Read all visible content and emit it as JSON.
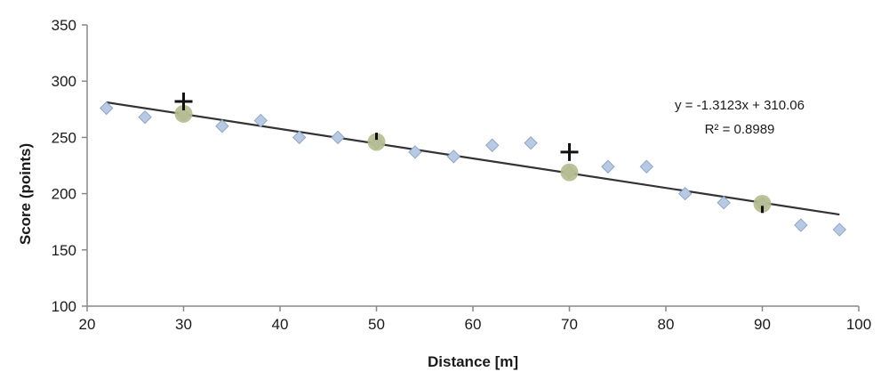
{
  "chart_data": {
    "type": "scatter",
    "xlabel": "Distance [m]",
    "ylabel": "Score (points)",
    "xlim": [
      20,
      100
    ],
    "ylim": [
      100,
      350
    ],
    "x_ticks": [
      20,
      30,
      40,
      50,
      60,
      70,
      80,
      90,
      100
    ],
    "y_ticks": [
      100,
      150,
      200,
      250,
      300,
      350
    ],
    "grid": false,
    "series": [
      {
        "marker": "diamond",
        "color": "#b8c9e3",
        "points": [
          [
            22,
            276
          ],
          [
            26,
            268
          ],
          [
            30,
            270
          ],
          [
            34,
            260
          ],
          [
            38,
            265
          ],
          [
            42,
            250
          ],
          [
            46,
            250
          ],
          [
            50,
            245
          ],
          [
            54,
            237
          ],
          [
            58,
            233
          ],
          [
            62,
            243
          ],
          [
            66,
            245
          ],
          [
            70,
            219
          ],
          [
            74,
            224
          ],
          [
            78,
            224
          ],
          [
            82,
            200
          ],
          [
            86,
            192
          ],
          [
            90,
            191
          ],
          [
            94,
            172
          ],
          [
            98,
            168
          ]
        ]
      },
      {
        "marker": "circle",
        "color": "#b5bb8d",
        "points": [
          [
            30,
            271
          ],
          [
            50,
            246
          ],
          [
            70,
            219
          ],
          [
            90,
            191
          ]
        ]
      },
      {
        "marker": "plus",
        "color": "#111111",
        "points": [
          [
            30,
            282
          ],
          [
            70,
            237
          ]
        ]
      },
      {
        "marker": "dash",
        "color": "#111111",
        "points": [
          [
            50,
            251
          ],
          [
            90,
            186
          ]
        ]
      }
    ],
    "trendline": {
      "slope": -1.3123,
      "intercept": 310.06,
      "x_range": [
        22,
        98
      ],
      "equation_label": "y = -1.3123x + 310.06",
      "r2_label": "R² = 0.8989"
    }
  }
}
